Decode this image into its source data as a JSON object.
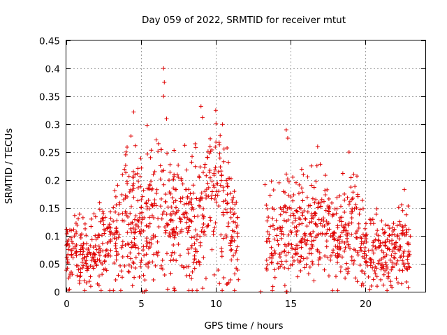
{
  "chart_data": {
    "type": "scatter",
    "title": "Day 059 of 2022, SRMTID for receiver mtut",
    "xlabel": "GPS time / hours",
    "ylabel": "SRMTID / TECUs",
    "xlim": [
      0,
      24
    ],
    "ylim": [
      0,
      0.45
    ],
    "x_ticks": [
      "0",
      "5",
      "10",
      "15",
      "20"
    ],
    "y_ticks": [
      "0",
      "0.05",
      "0.1",
      "0.15",
      "0.2",
      "0.25",
      "0.3",
      "0.35",
      "0.4",
      "0.45"
    ],
    "grid": true,
    "marker": "+",
    "marker_color": "#e00000",
    "gaps": [
      [
        11.5,
        13.2
      ]
    ],
    "trend_profile": {
      "x": [
        0,
        1,
        2,
        3,
        4,
        4.5,
        5,
        5.5,
        6,
        6.5,
        7,
        8,
        9,
        9.5,
        10,
        10.5,
        11,
        11.5,
        13.2,
        14,
        14.5,
        15,
        16,
        17,
        18,
        19,
        19.5,
        20,
        21,
        22,
        23
      ],
      "y": [
        0.06,
        0.07,
        0.075,
        0.09,
        0.12,
        0.14,
        0.13,
        0.12,
        0.13,
        0.14,
        0.13,
        0.12,
        0.13,
        0.15,
        0.16,
        0.15,
        0.12,
        0.1,
        0.1,
        0.09,
        0.1,
        0.1,
        0.11,
        0.12,
        0.1,
        0.11,
        0.1,
        0.08,
        0.07,
        0.07,
        0.08
      ]
    },
    "peaks": [
      {
        "x": 4.5,
        "y": 0.322
      },
      {
        "x": 5.4,
        "y": 0.298
      },
      {
        "x": 6.0,
        "y": 0.272
      },
      {
        "x": 6.5,
        "y": 0.4
      },
      {
        "x": 6.55,
        "y": 0.375
      },
      {
        "x": 6.5,
        "y": 0.35
      },
      {
        "x": 6.7,
        "y": 0.31
      },
      {
        "x": 9.0,
        "y": 0.332
      },
      {
        "x": 9.1,
        "y": 0.312
      },
      {
        "x": 10.0,
        "y": 0.268
      },
      {
        "x": 14.7,
        "y": 0.29
      },
      {
        "x": 14.8,
        "y": 0.275
      },
      {
        "x": 16.8,
        "y": 0.26
      },
      {
        "x": 18.9,
        "y": 0.25
      },
      {
        "x": 22.6,
        "y": 0.183
      }
    ]
  }
}
